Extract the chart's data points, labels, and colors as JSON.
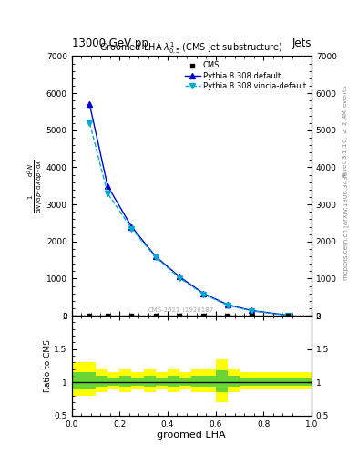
{
  "title": "13000 GeV pp",
  "title_right": "Jets",
  "plot_title": "Groomed LHA $\\lambda^{1}_{0.5}$ (CMS jet substructure)",
  "xlabel": "groomed LHA",
  "ylabel_ratio": "Ratio to CMS",
  "right_label_top": "Rivet 3.1.10, $\\geq$ 2.4M events",
  "right_label_bottom": "mcplots.cern.ch [arXiv:1306.3436]",
  "cms_label": "CMS-2021_I1920187",
  "pythia_default_x": [
    0.075,
    0.15,
    0.25,
    0.35,
    0.45,
    0.55,
    0.65,
    0.75,
    0.9
  ],
  "pythia_default_y": [
    5700,
    3500,
    2400,
    1600,
    1050,
    600,
    300,
    140,
    15
  ],
  "pythia_vincia_x": [
    0.075,
    0.15,
    0.25,
    0.35,
    0.45,
    0.55,
    0.65,
    0.75,
    0.9
  ],
  "pythia_vincia_y": [
    5200,
    3300,
    2350,
    1580,
    1020,
    580,
    285,
    130,
    12
  ],
  "cms_x": [
    0.075,
    0.15,
    0.25,
    0.35,
    0.45,
    0.55,
    0.65,
    0.75,
    0.9
  ],
  "cms_y": [
    0,
    0,
    0,
    0,
    0,
    0,
    0,
    0,
    0
  ],
  "ratio_edges": [
    0.0,
    0.05,
    0.1,
    0.15,
    0.2,
    0.25,
    0.3,
    0.35,
    0.4,
    0.45,
    0.5,
    0.55,
    0.6,
    0.65,
    0.7,
    0.75,
    0.8,
    0.85,
    0.9,
    0.95,
    1.0
  ],
  "yellow_band_top": [
    1.3,
    1.3,
    1.2,
    1.15,
    1.2,
    1.15,
    1.2,
    1.15,
    1.2,
    1.15,
    1.2,
    1.2,
    1.35,
    1.2,
    1.15,
    1.15,
    1.15,
    1.15,
    1.15,
    1.15
  ],
  "yellow_band_bottom": [
    0.8,
    0.8,
    0.85,
    0.9,
    0.85,
    0.9,
    0.85,
    0.9,
    0.85,
    0.9,
    0.85,
    0.85,
    0.7,
    0.85,
    0.9,
    0.9,
    0.9,
    0.9,
    0.9,
    0.9
  ],
  "green_band_top": [
    1.15,
    1.15,
    1.1,
    1.07,
    1.1,
    1.07,
    1.1,
    1.07,
    1.1,
    1.07,
    1.1,
    1.1,
    1.18,
    1.1,
    1.07,
    1.07,
    1.07,
    1.07,
    1.07,
    1.07
  ],
  "green_band_bottom": [
    0.9,
    0.9,
    0.93,
    0.95,
    0.93,
    0.95,
    0.93,
    0.95,
    0.93,
    0.95,
    0.93,
    0.93,
    0.85,
    0.93,
    0.95,
    0.95,
    0.95,
    0.95,
    0.95,
    0.95
  ],
  "ylim_main": [
    0,
    7000
  ],
  "ylim_ratio": [
    0.5,
    2.0
  ],
  "xlim": [
    0.0,
    1.0
  ],
  "color_pythia_default": "#0000cc",
  "color_pythia_vincia": "#00aacc",
  "color_cms": "#000000",
  "color_yellow": "#ffff00",
  "color_green": "#44cc44",
  "yticks_main": [
    0,
    1000,
    2000,
    3000,
    4000,
    5000,
    6000,
    7000
  ],
  "ytick_labels_main": [
    "0",
    "1000",
    "2000",
    "3000",
    "4000",
    "5000",
    "6000",
    "7000"
  ],
  "yticks_ratio": [
    0.5,
    1.0,
    1.5,
    2.0
  ],
  "ytick_labels_ratio": [
    "0.5",
    "1",
    "1.5",
    "2"
  ]
}
